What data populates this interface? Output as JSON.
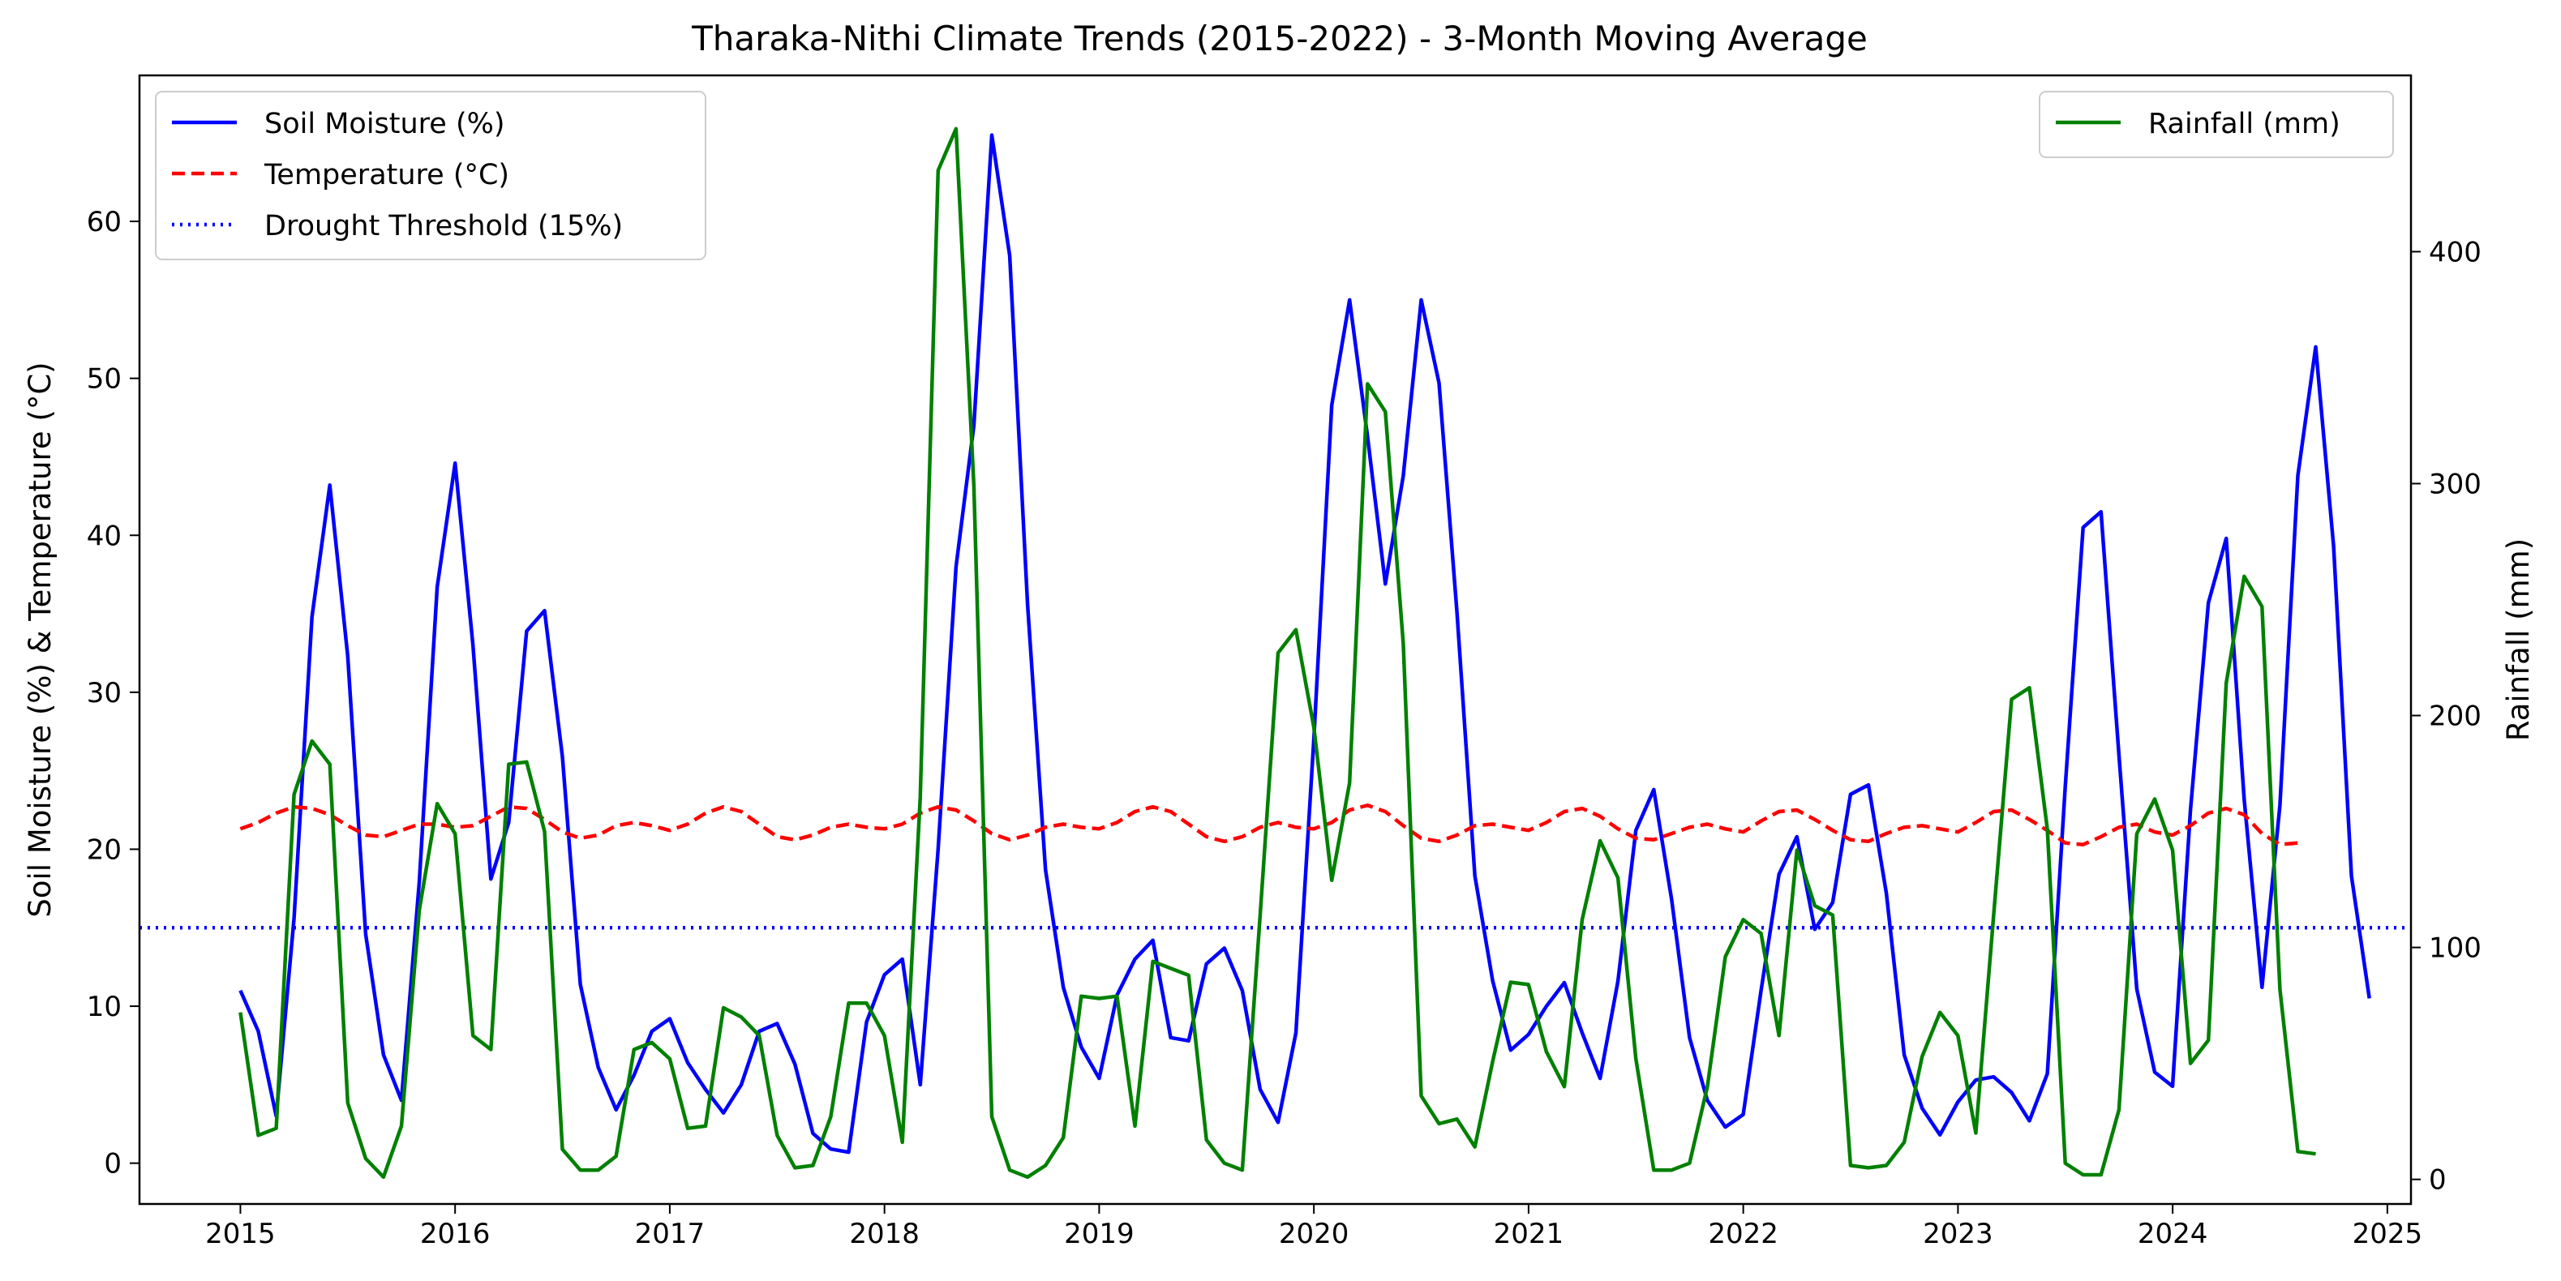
{
  "chart_data": {
    "type": "line",
    "title": "Tharaka-Nithi Climate Trends (2015-2022) - 3-Month Moving Average",
    "ylabel_left": "Soil Moisture (%) & Temperature (°C)",
    "ylabel_right": "Rainfall (mm)",
    "xlabel": "",
    "x_ticks": [
      "2015",
      "2016",
      "2017",
      "2018",
      "2019",
      "2020",
      "2021",
      "2022",
      "2023",
      "2024",
      "2025"
    ],
    "y_left_ticks": [
      "0",
      "10",
      "20",
      "30",
      "40",
      "50",
      "60"
    ],
    "y_right_ticks": [
      "0",
      "100",
      "200",
      "300",
      "400"
    ],
    "xlim": [
      2014.53,
      2025.11
    ],
    "ylim_left": [
      -2.6,
      69.3
    ],
    "ylim_right": [
      -10.6,
      476
    ],
    "grid": false,
    "legend_left": {
      "placement": "top-left",
      "entries": [
        "Soil Moisture (%)",
        "Temperature (°C)",
        "Drought Threshold (15%)"
      ]
    },
    "legend_right": {
      "placement": "top-right",
      "entries": [
        "Rainfall (mm)"
      ]
    },
    "x_start_year": 2015,
    "x_step_years": 0.08333,
    "series": [
      {
        "name": "Soil Moisture (%)",
        "axis": "left",
        "color": "#0000ff",
        "style": "solid",
        "values": [
          11.0,
          8.4,
          3.0,
          15.6,
          34.8,
          43.2,
          32.3,
          14.6,
          6.9,
          4.0,
          17.9,
          36.7,
          44.6,
          33.0,
          18.1,
          21.7,
          33.9,
          35.2,
          25.9,
          11.4,
          6.1,
          3.4,
          5.6,
          8.4,
          9.2,
          6.4,
          4.7,
          3.2,
          5.0,
          8.4,
          8.9,
          6.3,
          1.9,
          0.9,
          0.7,
          9.0,
          12.0,
          13.0,
          5.0,
          20.0,
          38.0,
          47.0,
          65.5,
          57.8,
          35.6,
          18.7,
          11.2,
          7.4,
          5.4,
          10.7,
          13.0,
          14.2,
          8.0,
          7.8,
          12.7,
          13.7,
          11.0,
          4.7,
          2.6,
          8.3,
          27.0,
          48.3,
          55.0,
          46.3,
          36.9,
          43.8,
          55.0,
          49.7,
          35.1,
          18.3,
          11.6,
          7.2,
          8.2,
          10.0,
          11.5,
          8.3,
          5.4,
          11.6,
          21.2,
          23.8,
          16.8,
          8.0,
          4.0,
          2.3,
          3.1,
          11.0,
          18.4,
          20.8,
          14.9,
          16.6,
          23.5,
          24.1,
          17.2,
          6.9,
          3.5,
          1.8,
          3.9,
          5.3,
          5.5,
          4.5,
          2.7,
          5.7,
          24.0,
          40.5,
          41.5,
          26.0,
          11.1,
          5.8,
          4.9,
          22.5,
          35.7,
          39.8,
          23.2,
          11.2,
          22.8,
          43.8,
          52.0,
          39.3,
          18.3,
          10.5
        ]
      },
      {
        "name": "Temperature (°C)",
        "axis": "left",
        "color": "#ff0000",
        "style": "dashed",
        "values": [
          21.3,
          21.7,
          22.3,
          22.7,
          22.6,
          22.2,
          21.5,
          20.9,
          20.8,
          21.2,
          21.6,
          21.6,
          21.4,
          21.5,
          22.1,
          22.7,
          22.6,
          21.9,
          21.1,
          20.7,
          20.9,
          21.5,
          21.7,
          21.5,
          21.2,
          21.6,
          22.3,
          22.7,
          22.4,
          21.6,
          20.8,
          20.6,
          20.9,
          21.4,
          21.6,
          21.4,
          21.3,
          21.6,
          22.3,
          22.7,
          22.5,
          21.8,
          21.0,
          20.6,
          20.9,
          21.4,
          21.6,
          21.4,
          21.3,
          21.7,
          22.4,
          22.7,
          22.4,
          21.6,
          20.8,
          20.5,
          20.8,
          21.4,
          21.7,
          21.4,
          21.3,
          21.7,
          22.5,
          22.8,
          22.4,
          21.5,
          20.7,
          20.5,
          20.9,
          21.5,
          21.6,
          21.4,
          21.2,
          21.7,
          22.4,
          22.6,
          22.1,
          21.3,
          20.7,
          20.6,
          21.0,
          21.4,
          21.6,
          21.3,
          21.1,
          21.8,
          22.4,
          22.5,
          21.9,
          21.2,
          20.6,
          20.5,
          21.0,
          21.4,
          21.5,
          21.3,
          21.1,
          21.7,
          22.4,
          22.5,
          21.9,
          21.2,
          20.4,
          20.3,
          20.8,
          21.4,
          21.6,
          21.1,
          20.9,
          21.5,
          22.3,
          22.6,
          22.2,
          21.0,
          20.3,
          20.4
        ]
      },
      {
        "name": "Drought Threshold (15%)",
        "axis": "left",
        "color": "#0000ff",
        "style": "dotted",
        "values": [
          15
        ]
      },
      {
        "name": "Rainfall (mm)",
        "axis": "right",
        "color": "#008000",
        "style": "solid",
        "values": [
          72,
          19,
          22,
          166,
          189,
          179,
          33,
          9,
          1,
          23,
          116,
          162,
          149,
          62,
          56,
          179,
          180,
          150,
          13,
          4,
          4,
          10,
          56,
          59,
          52,
          22,
          23,
          74,
          70,
          62,
          19,
          5,
          6,
          27,
          76,
          76,
          62,
          16,
          165,
          435,
          453,
          299,
          27,
          4,
          1,
          6,
          18,
          79,
          78,
          79,
          23,
          94,
          91,
          88,
          17,
          7,
          4,
          114,
          227,
          237,
          195,
          129,
          171,
          343,
          331,
          231,
          36,
          24,
          26,
          14,
          51,
          85,
          84,
          55,
          40,
          112,
          146,
          130,
          52,
          4,
          4,
          7,
          40,
          96,
          112,
          106,
          62,
          142,
          118,
          114,
          6,
          5,
          6,
          16,
          53,
          72,
          62,
          20,
          114,
          207,
          212,
          151,
          7,
          2,
          2,
          30,
          149,
          164,
          142,
          50,
          60,
          214,
          260,
          247,
          82,
          12,
          11
        ]
      }
    ]
  }
}
